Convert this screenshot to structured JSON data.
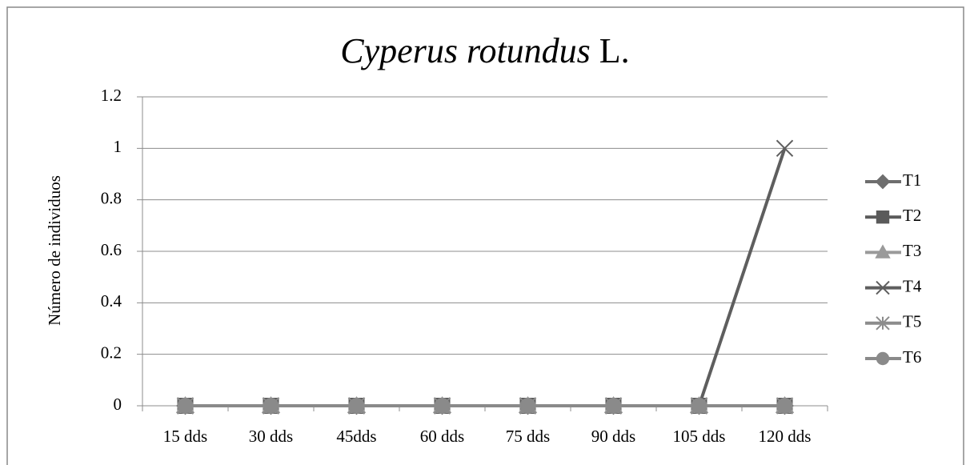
{
  "chart_data": {
    "type": "line",
    "title": [
      "Cyperus rotundus",
      "L."
    ],
    "ylabel": "Número de individuos",
    "categories": [
      "15 dds",
      "30 dds",
      "45dds",
      "60 dds",
      "75 dds",
      "90 dds",
      "105 dds",
      "120 dds"
    ],
    "series": [
      {
        "name": "T1",
        "color": "#6e6e6e",
        "marker": "diamond",
        "values": [
          0,
          0,
          0,
          0,
          0,
          0,
          0,
          0
        ]
      },
      {
        "name": "T2",
        "color": "#5a5a5a",
        "marker": "square",
        "values": [
          0,
          0,
          0,
          0,
          0,
          0,
          0,
          0
        ]
      },
      {
        "name": "T3",
        "color": "#9a9a9a",
        "marker": "triangle",
        "values": [
          0,
          0,
          0,
          0,
          0,
          0,
          0,
          0
        ]
      },
      {
        "name": "T4",
        "color": "#5e5e5e",
        "marker": "x",
        "values": [
          0,
          0,
          0,
          0,
          0,
          0,
          0,
          1
        ]
      },
      {
        "name": "T5",
        "color": "#8c8c8c",
        "marker": "star",
        "values": [
          0,
          0,
          0,
          0,
          0,
          0,
          0,
          0
        ]
      },
      {
        "name": "T6",
        "color": "#8a8a8a",
        "marker": "circle",
        "values": [
          0,
          0,
          0,
          0,
          0,
          0,
          0,
          0
        ]
      }
    ],
    "ylim": [
      0,
      1.2
    ],
    "yticks": [
      0,
      0.2,
      0.4,
      0.6,
      0.8,
      1,
      1.2
    ],
    "grid": true,
    "legend": "right"
  }
}
